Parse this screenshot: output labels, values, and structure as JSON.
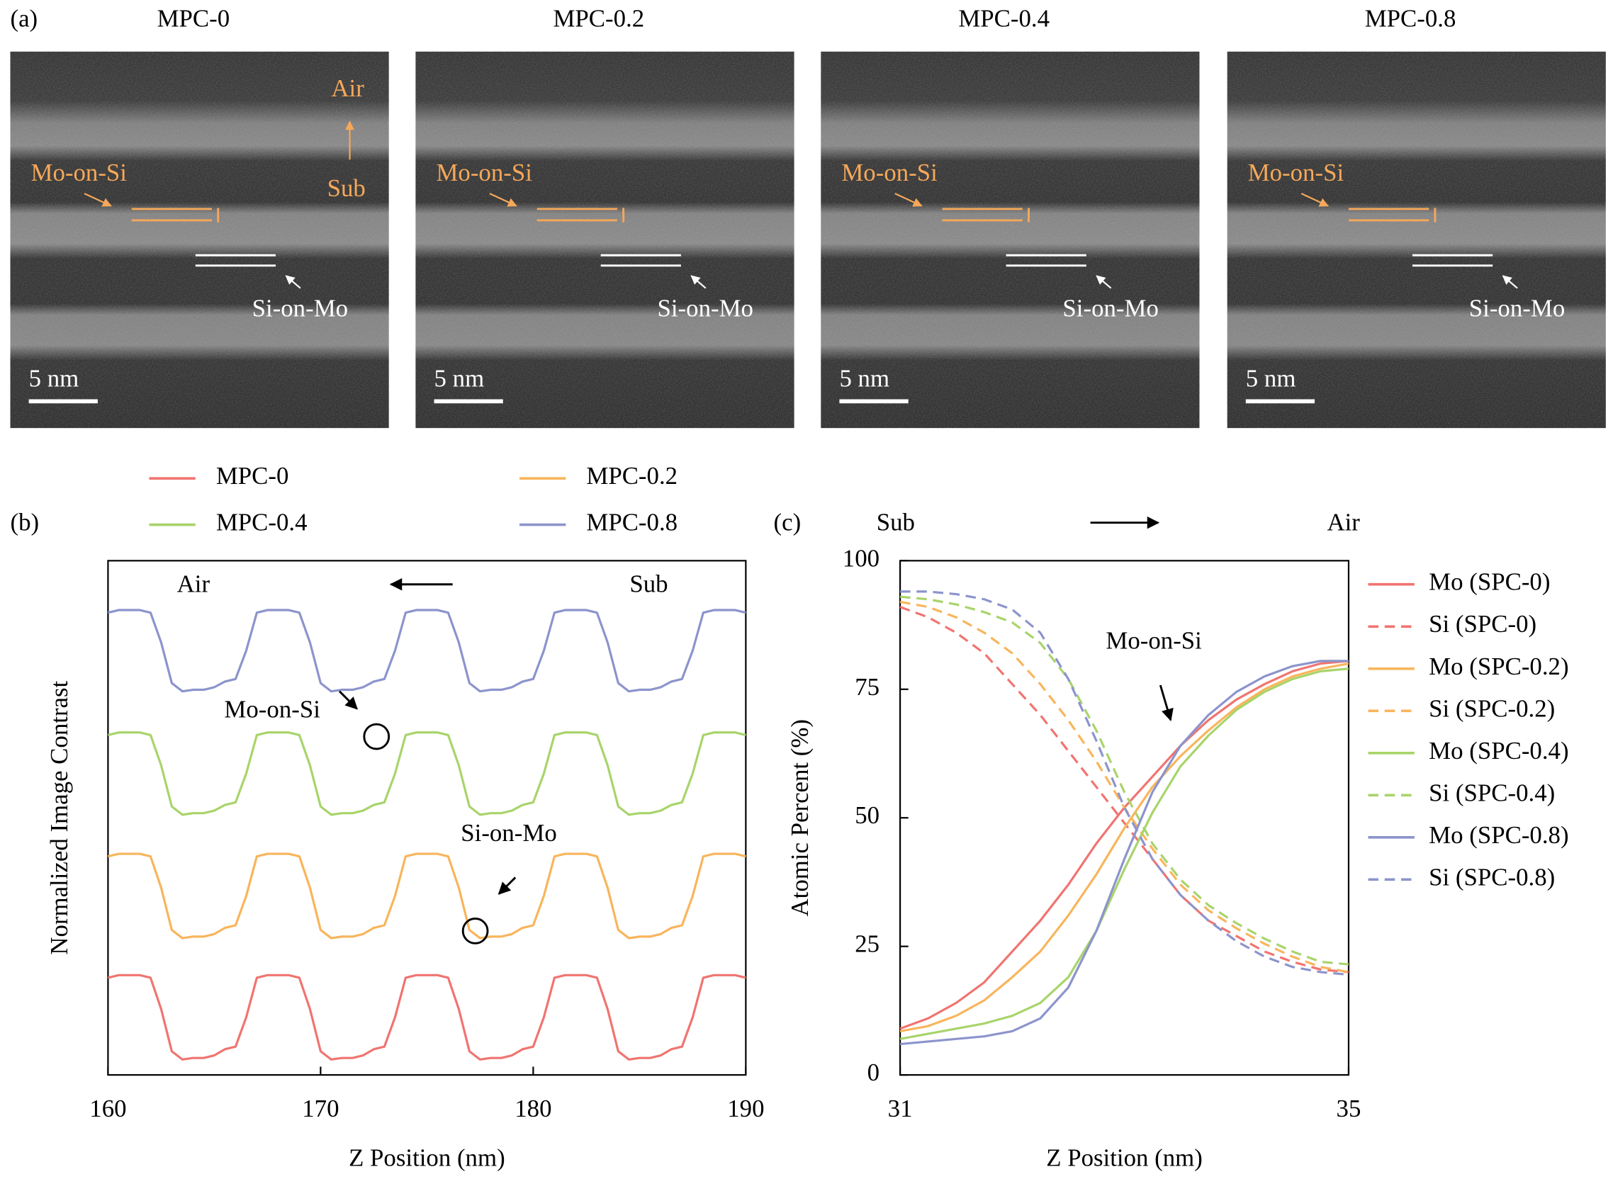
{
  "panel_a": {
    "label": "(a)",
    "images": [
      {
        "title": "MPC-0",
        "scale_bar": "5 nm",
        "mo_on_si": "Mo-on-Si",
        "si_on_mo": "Si-on-Mo",
        "air": "Air",
        "sub": "Sub"
      },
      {
        "title": "MPC-0.2",
        "scale_bar": "5 nm",
        "mo_on_si": "Mo-on-Si",
        "si_on_mo": "Si-on-Mo"
      },
      {
        "title": "MPC-0.4",
        "scale_bar": "5 nm",
        "mo_on_si": "Mo-on-Si",
        "si_on_mo": "Si-on-Mo"
      },
      {
        "title": "MPC-0.8",
        "scale_bar": "5 nm",
        "mo_on_si": "Mo-on-Si",
        "si_on_mo": "Si-on-Mo"
      }
    ]
  },
  "chart_data": [
    {
      "type": "line",
      "panel_label": "(b)",
      "x_label": "Z Position (nm)",
      "y_label": "Normalized Image Contrast",
      "annotations": [
        "Air",
        "Sub",
        "Mo-on-Si",
        "Si-on-Mo"
      ],
      "legend": "top",
      "xlim": [
        160,
        190
      ],
      "xticks": [
        160,
        170,
        180,
        190
      ],
      "ylim": [
        0,
        1
      ],
      "x": [
        160,
        160.5,
        161,
        161.5,
        162,
        162.5,
        163,
        163.5,
        164,
        164.5,
        165,
        165.5,
        166,
        166.5,
        167,
        167.5,
        168,
        168.5,
        169,
        169.5,
        170,
        170.5,
        171,
        171.5,
        172,
        172.5,
        173,
        173.5,
        174,
        174.5,
        175,
        175.5,
        176,
        176.5,
        177,
        177.5,
        178,
        178.5,
        179,
        179.5,
        180,
        180.5,
        181,
        181.5,
        182,
        182.5,
        183,
        183.5,
        184,
        184.5,
        185,
        185.5,
        186,
        186.5,
        187,
        187.5,
        188,
        188.5,
        189,
        189.5,
        190
      ],
      "series": [
        {
          "name": "MPC-0",
          "color": "#f07470",
          "values": [
            0.189,
            0.194,
            0.194,
            0.194,
            0.189,
            0.128,
            0.046,
            0.03,
            0.033,
            0.033,
            0.038,
            0.05,
            0.055,
            0.112,
            0.189,
            0.194,
            0.194,
            0.194,
            0.189,
            0.128,
            0.046,
            0.03,
            0.033,
            0.033,
            0.038,
            0.05,
            0.055,
            0.112,
            0.189,
            0.194,
            0.194,
            0.194,
            0.189,
            0.128,
            0.046,
            0.03,
            0.033,
            0.033,
            0.038,
            0.05,
            0.055,
            0.112,
            0.189,
            0.194,
            0.194,
            0.194,
            0.189,
            0.128,
            0.046,
            0.03,
            0.033,
            0.033,
            0.038,
            0.05,
            0.055,
            0.112,
            0.189,
            0.194,
            0.194,
            0.194,
            0.189
          ]
        },
        {
          "name": "MPC-0.2",
          "color": "#f8b55c",
          "values": [
            0.425,
            0.43,
            0.43,
            0.43,
            0.425,
            0.364,
            0.282,
            0.266,
            0.269,
            0.269,
            0.274,
            0.286,
            0.291,
            0.348,
            0.425,
            0.43,
            0.43,
            0.43,
            0.425,
            0.364,
            0.282,
            0.266,
            0.269,
            0.269,
            0.274,
            0.286,
            0.291,
            0.348,
            0.425,
            0.43,
            0.43,
            0.43,
            0.425,
            0.364,
            0.282,
            0.266,
            0.269,
            0.269,
            0.274,
            0.286,
            0.291,
            0.348,
            0.425,
            0.43,
            0.43,
            0.43,
            0.425,
            0.364,
            0.282,
            0.266,
            0.269,
            0.269,
            0.274,
            0.286,
            0.291,
            0.348,
            0.425,
            0.43,
            0.43,
            0.43,
            0.425
          ]
        },
        {
          "name": "MPC-0.4",
          "color": "#a8d46a",
          "values": [
            0.661,
            0.666,
            0.666,
            0.666,
            0.661,
            0.602,
            0.522,
            0.506,
            0.509,
            0.509,
            0.514,
            0.525,
            0.53,
            0.586,
            0.661,
            0.666,
            0.666,
            0.666,
            0.661,
            0.602,
            0.522,
            0.506,
            0.509,
            0.509,
            0.514,
            0.525,
            0.53,
            0.586,
            0.661,
            0.666,
            0.666,
            0.666,
            0.661,
            0.602,
            0.522,
            0.506,
            0.509,
            0.509,
            0.514,
            0.525,
            0.53,
            0.586,
            0.661,
            0.666,
            0.666,
            0.666,
            0.661,
            0.602,
            0.522,
            0.506,
            0.509,
            0.509,
            0.514,
            0.525,
            0.53,
            0.586,
            0.661,
            0.666,
            0.666,
            0.666,
            0.661
          ]
        },
        {
          "name": "MPC-0.8",
          "color": "#8c94cc",
          "values": [
            0.899,
            0.904,
            0.904,
            0.904,
            0.899,
            0.841,
            0.762,
            0.746,
            0.749,
            0.749,
            0.754,
            0.765,
            0.77,
            0.825,
            0.899,
            0.904,
            0.904,
            0.904,
            0.899,
            0.841,
            0.762,
            0.746,
            0.749,
            0.749,
            0.754,
            0.765,
            0.77,
            0.825,
            0.899,
            0.904,
            0.904,
            0.904,
            0.899,
            0.841,
            0.762,
            0.746,
            0.749,
            0.749,
            0.754,
            0.765,
            0.77,
            0.825,
            0.899,
            0.904,
            0.904,
            0.904,
            0.899,
            0.841,
            0.762,
            0.746,
            0.749,
            0.749,
            0.754,
            0.765,
            0.77,
            0.825,
            0.899,
            0.904,
            0.904,
            0.904,
            0.899
          ]
        }
      ]
    },
    {
      "type": "line",
      "panel_label": "(c)",
      "x_label": "Z Position (nm)",
      "y_label": "Atomic Percent (%)",
      "annotations": [
        "Sub",
        "Air",
        "Mo-on-Si"
      ],
      "legend": "right",
      "xlim": [
        31,
        35
      ],
      "xticks": [
        31,
        35
      ],
      "ylim": [
        0,
        100
      ],
      "yticks": [
        0,
        25,
        50,
        75,
        100
      ],
      "x": [
        31,
        31.25,
        31.5,
        31.75,
        32,
        32.25,
        32.5,
        32.75,
        33,
        33.25,
        33.5,
        33.75,
        34,
        34.25,
        34.5,
        34.75,
        35
      ],
      "series": [
        {
          "name": "Mo (SPC-0)",
          "color": "#f07470",
          "dashed": false,
          "values": [
            9,
            11,
            14,
            18,
            24,
            30,
            37,
            45,
            52,
            58,
            64,
            69,
            73,
            76,
            78.5,
            80,
            80.5
          ]
        },
        {
          "name": "Si (SPC-0)",
          "color": "#f07470",
          "dashed": true,
          "values": [
            91,
            89,
            86,
            82,
            76,
            70,
            63,
            56,
            49,
            42,
            35,
            30,
            27,
            24,
            22,
            20.5,
            20
          ]
        },
        {
          "name": "Mo (SPC-0.2)",
          "color": "#f8b55c",
          "dashed": false,
          "values": [
            8.5,
            9.5,
            11.5,
            14.5,
            19,
            24,
            31,
            39,
            48,
            56,
            62,
            67,
            71.5,
            75,
            77.5,
            79,
            80
          ]
        },
        {
          "name": "Si (SPC-0.2)",
          "color": "#f8b55c",
          "dashed": true,
          "values": [
            92,
            91,
            89,
            86,
            82,
            76,
            69,
            61,
            52,
            44,
            37,
            32,
            28.5,
            25.5,
            23,
            21,
            20
          ]
        },
        {
          "name": "Mo (SPC-0.4)",
          "color": "#a8d46a",
          "dashed": false,
          "values": [
            7,
            8,
            9,
            10,
            11.5,
            14,
            19,
            28,
            40,
            51,
            60,
            66,
            71,
            74.5,
            77,
            78.5,
            79
          ]
        },
        {
          "name": "Si (SPC-0.4)",
          "color": "#a8d46a",
          "dashed": true,
          "values": [
            93,
            92.5,
            91.5,
            90,
            88,
            84,
            77,
            67,
            55,
            45,
            38,
            33,
            29.5,
            26.5,
            24,
            22,
            21.5
          ]
        },
        {
          "name": "Mo (SPC-0.8)",
          "color": "#8c94cc",
          "dashed": false,
          "values": [
            6,
            6.5,
            7,
            7.5,
            8.5,
            11,
            17,
            28,
            42,
            55,
            64,
            70,
            74.5,
            77.5,
            79.5,
            80.5,
            80.5
          ]
        },
        {
          "name": "Si (SPC-0.8)",
          "color": "#8c94cc",
          "dashed": true,
          "values": [
            94,
            94,
            93.5,
            92.5,
            90.5,
            86,
            77,
            65,
            52,
            42,
            35,
            30,
            26,
            23,
            21,
            20,
            19.5
          ]
        }
      ]
    }
  ]
}
